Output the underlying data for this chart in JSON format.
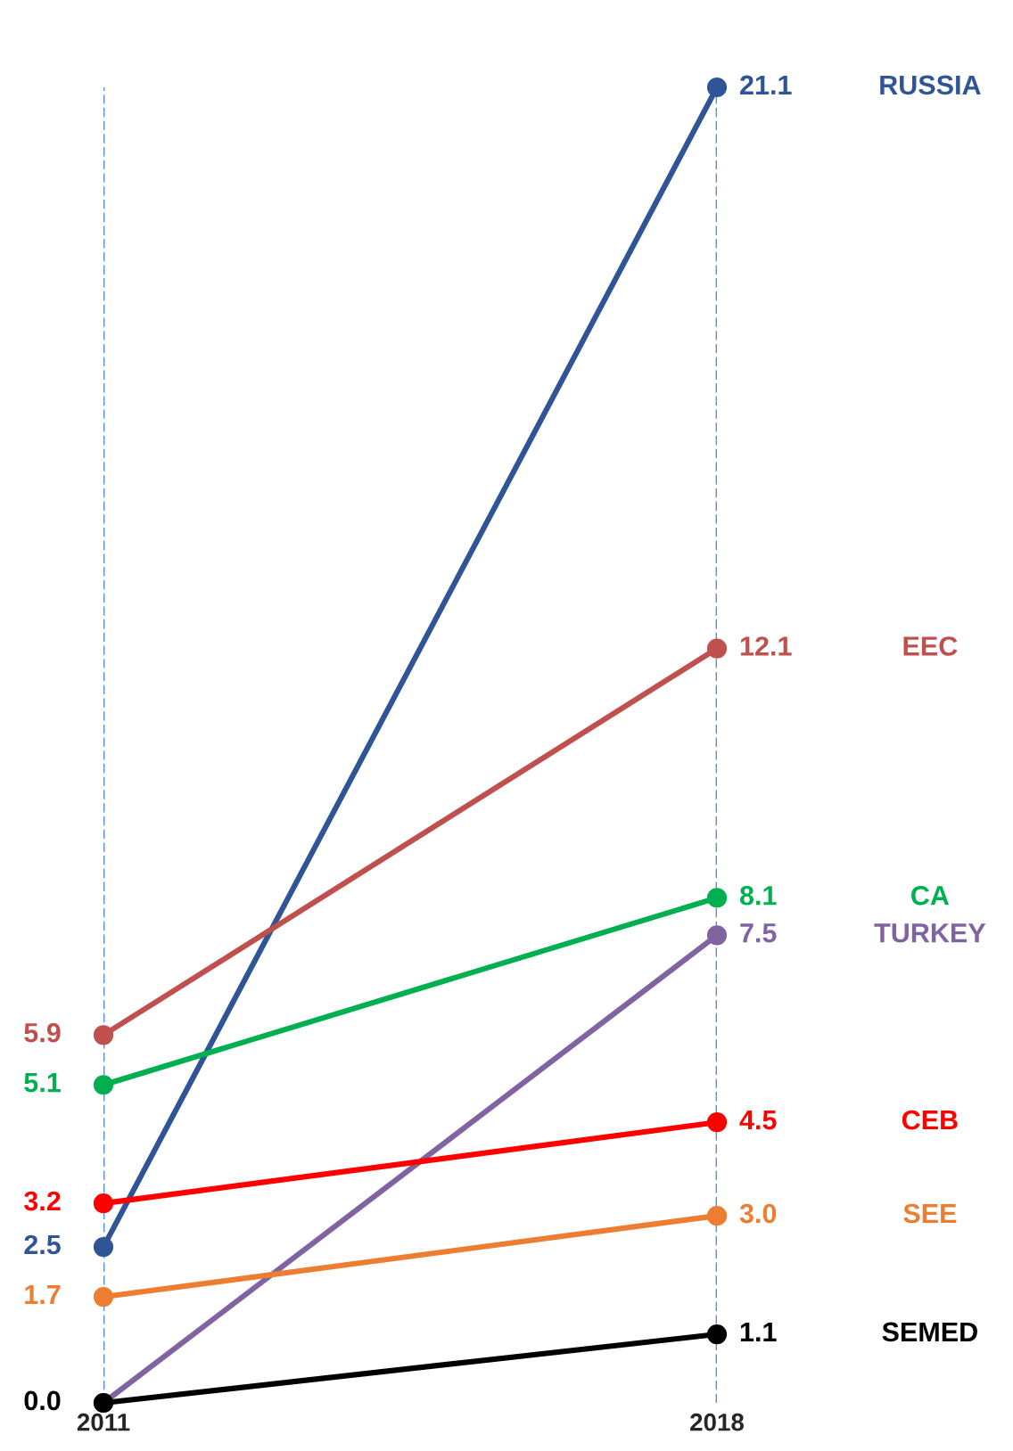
{
  "chart_data": {
    "type": "line",
    "categories": [
      "2011",
      "2018"
    ],
    "series": [
      {
        "name": "RUSSIA",
        "color": "#2f5597",
        "values": [
          2.5,
          21.1
        ],
        "value_labels": [
          "2.5",
          "21.1"
        ]
      },
      {
        "name": "EEC",
        "color": "#c0504d",
        "values": [
          5.9,
          12.1
        ],
        "value_labels": [
          "5.9",
          "12.1"
        ]
      },
      {
        "name": "CA",
        "color": "#00b050",
        "values": [
          5.1,
          8.1
        ],
        "value_labels": [
          "5.1",
          "8.1"
        ]
      },
      {
        "name": "TURKEY",
        "color": "#8064a2",
        "values": [
          0.0,
          7.5
        ],
        "value_labels": [
          null,
          "7.5"
        ]
      },
      {
        "name": "CEB",
        "color": "#ff0000",
        "values": [
          3.2,
          4.5
        ],
        "value_labels": [
          "3.2",
          "4.5"
        ]
      },
      {
        "name": "SEE",
        "color": "#ed7d31",
        "values": [
          1.7,
          3.0
        ],
        "value_labels": [
          "1.7",
          "3.0"
        ]
      },
      {
        "name": "SEMED",
        "color": "#000000",
        "values": [
          0.0,
          1.1
        ],
        "value_labels": [
          "0.0",
          "1.1"
        ]
      }
    ],
    "ylim": [
      0,
      21.1
    ],
    "tick_labels": "x",
    "grid": "x",
    "legend": false,
    "marker": "circle",
    "line_style": "solid"
  }
}
